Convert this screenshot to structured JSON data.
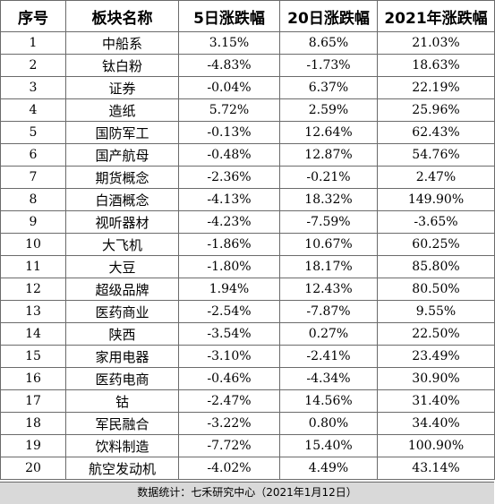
{
  "headers": [
    "序号",
    "板块名称",
    "5日涨跌幅",
    "20日涨跌幅",
    "2021年涨跌幅"
  ],
  "rows": [
    [
      "1",
      "中船系",
      "3.15%",
      "8.65%",
      "21.03%"
    ],
    [
      "2",
      "钛白粉",
      "-4.83%",
      "-1.73%",
      "18.63%"
    ],
    [
      "3",
      "证券",
      "-0.04%",
      "6.37%",
      "22.19%"
    ],
    [
      "4",
      "造纸",
      "5.72%",
      "2.59%",
      "25.96%"
    ],
    [
      "5",
      "国防军工",
      "-0.13%",
      "12.64%",
      "62.43%"
    ],
    [
      "6",
      "国产航母",
      "-0.48%",
      "12.87%",
      "54.76%"
    ],
    [
      "7",
      "期货概念",
      "-2.36%",
      "-0.21%",
      "2.47%"
    ],
    [
      "8",
      "白酒概念",
      "-4.13%",
      "18.32%",
      "149.90%"
    ],
    [
      "9",
      "视听器材",
      "-4.23%",
      "-7.59%",
      "-3.65%"
    ],
    [
      "10",
      "大飞机",
      "-1.86%",
      "10.67%",
      "60.25%"
    ],
    [
      "11",
      "大豆",
      "-1.80%",
      "18.17%",
      "85.80%"
    ],
    [
      "12",
      "超级品牌",
      "1.94%",
      "12.43%",
      "80.50%"
    ],
    [
      "13",
      "医药商业",
      "-2.54%",
      "-7.87%",
      "9.55%"
    ],
    [
      "14",
      "陕西",
      "-3.54%",
      "0.27%",
      "22.50%"
    ],
    [
      "15",
      "家用电器",
      "-3.10%",
      "-2.41%",
      "23.49%"
    ],
    [
      "16",
      "医药电商",
      "-0.46%",
      "-4.34%",
      "30.90%"
    ],
    [
      "17",
      "钴",
      "-2.47%",
      "14.56%",
      "31.40%"
    ],
    [
      "18",
      "军民融合",
      "-3.22%",
      "0.80%",
      "34.40%"
    ],
    [
      "19",
      "饮料制造",
      "-7.72%",
      "15.40%",
      "100.90%"
    ],
    [
      "20",
      "航空发动机",
      "-4.02%",
      "4.49%",
      "43.14%"
    ]
  ],
  "footer": "数据统计：七禾研究中心（2021年1月12日）"
}
